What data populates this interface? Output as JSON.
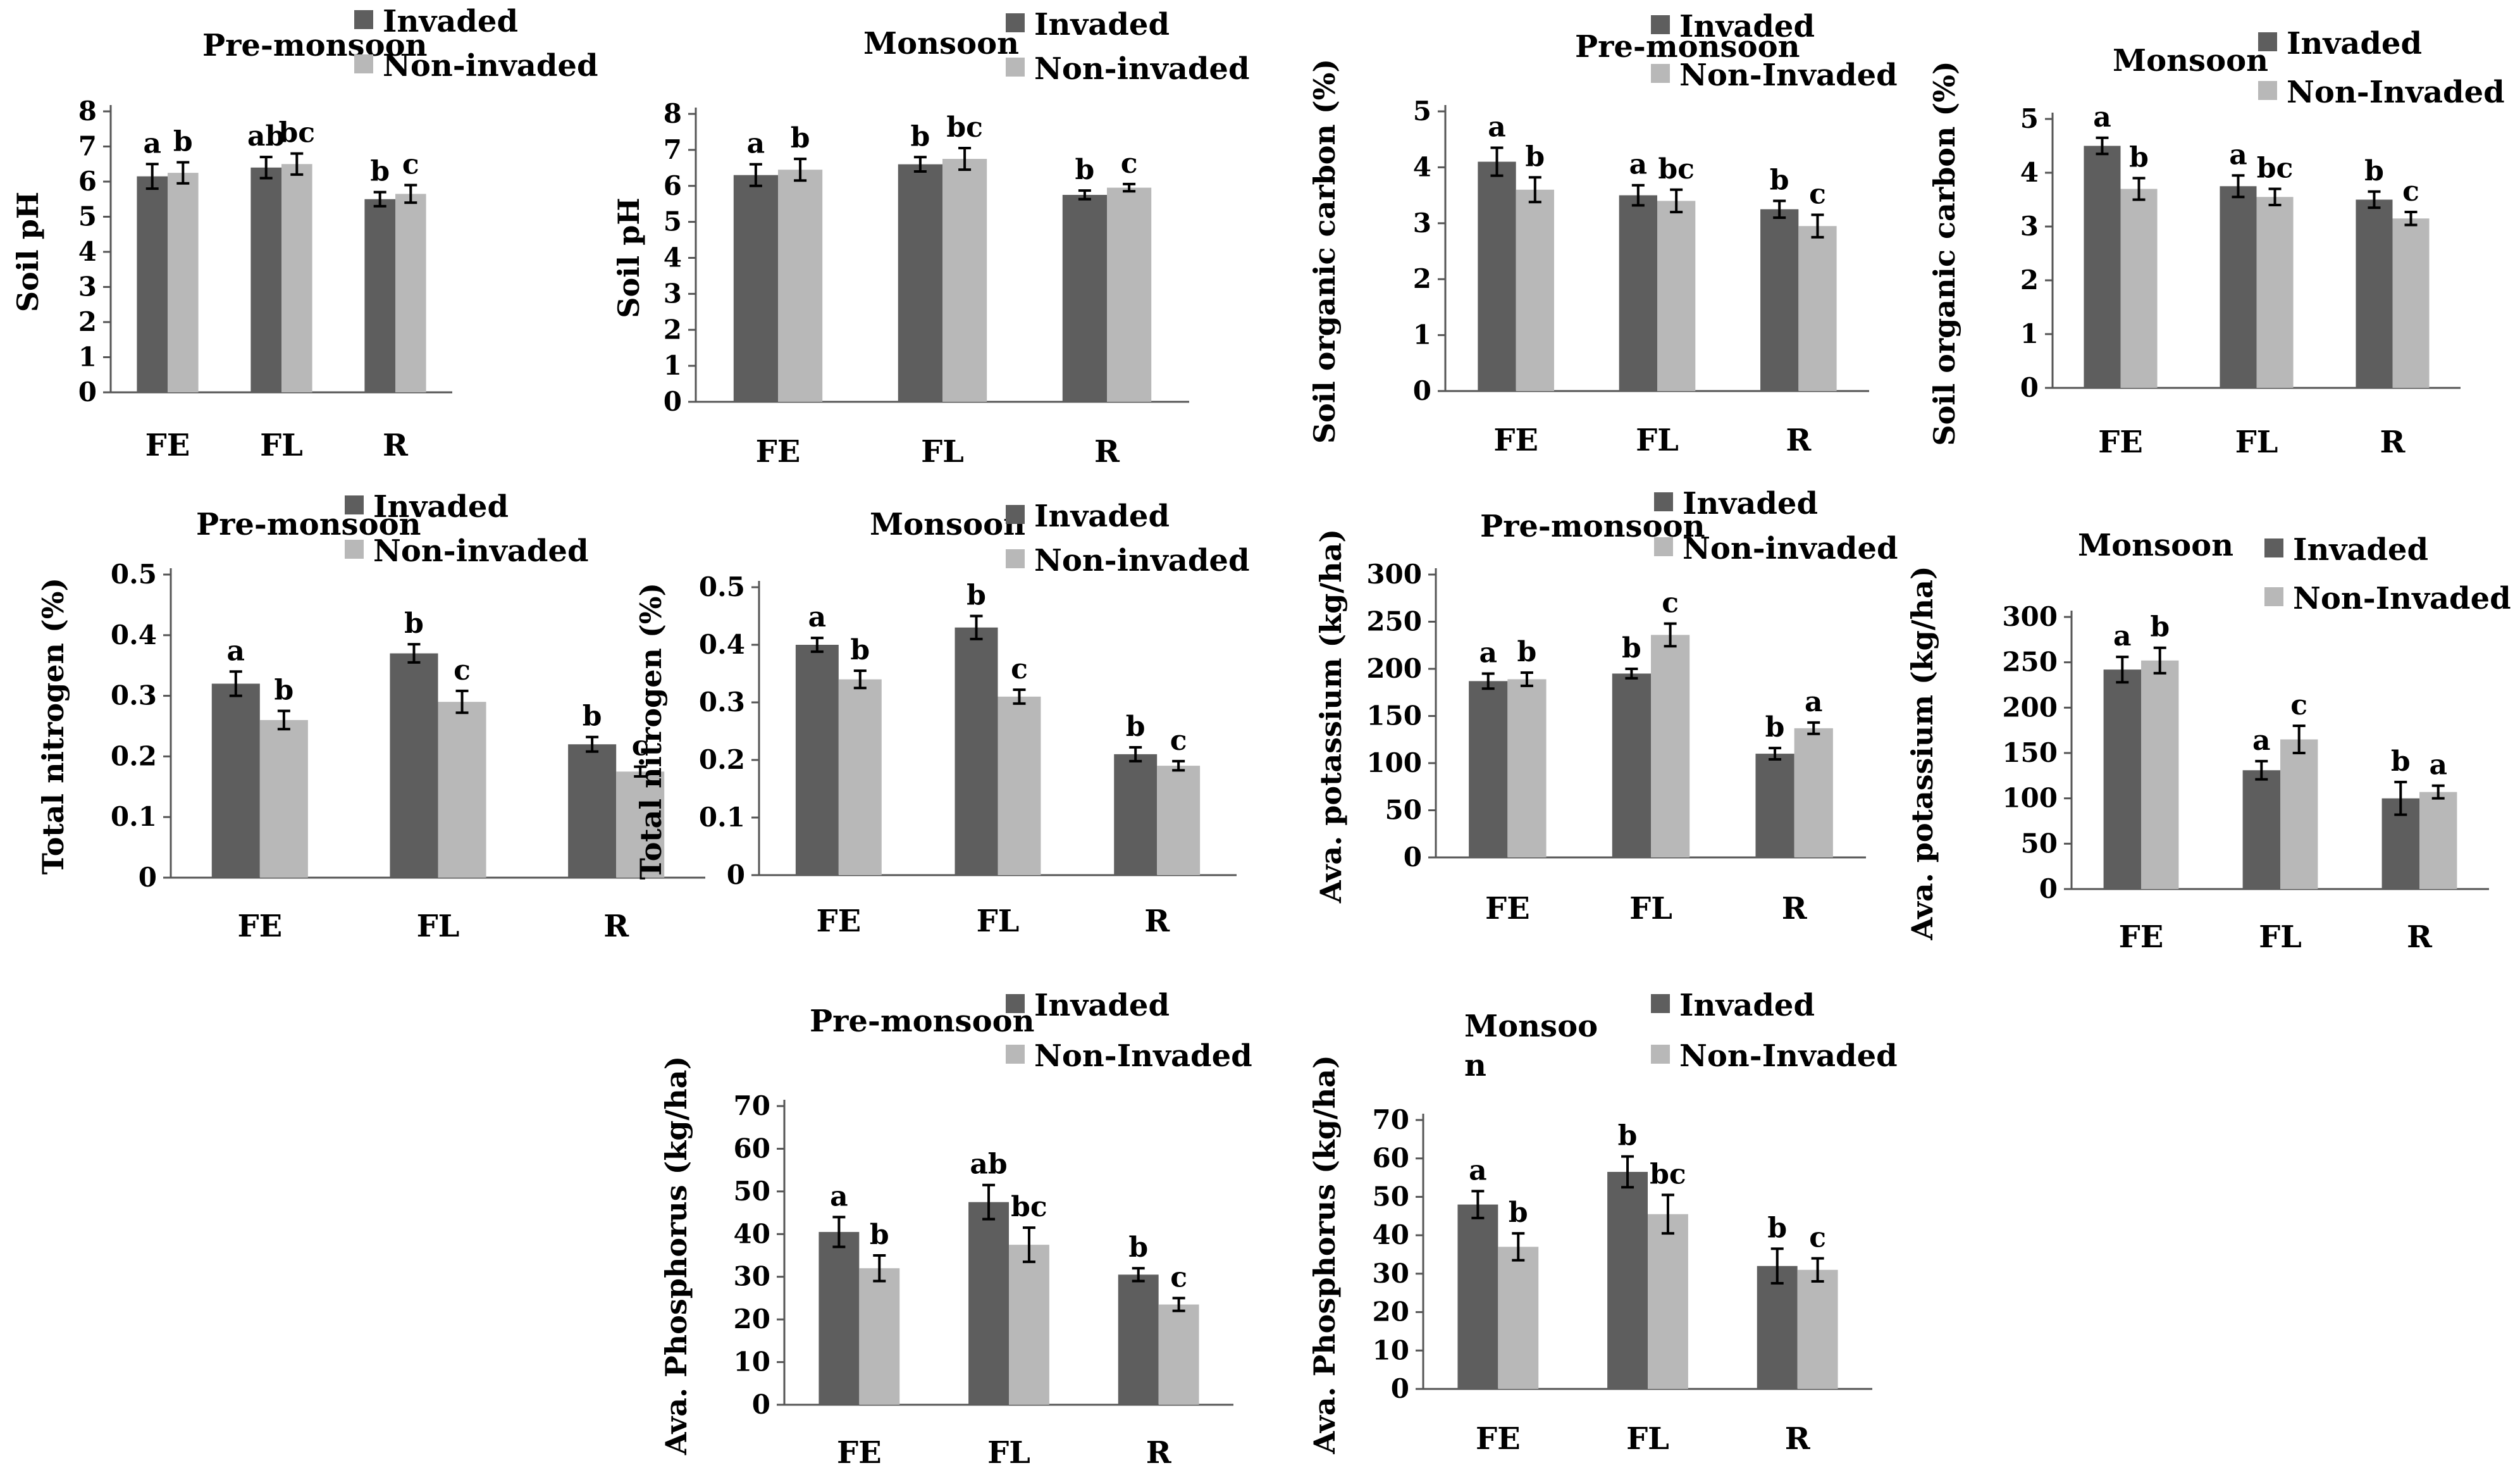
{
  "figure": {
    "colors": {
      "invaded": "#5e5e5e",
      "non_invaded": "#b8b8b8"
    }
  },
  "chart_data": [
    {
      "type": "bar",
      "title": "Pre-monsoon",
      "ylabel": "Soil pH",
      "categories": [
        "FE",
        "FL",
        "R"
      ],
      "ylim": [
        0,
        8
      ],
      "yticks": [
        0,
        1,
        2,
        3,
        4,
        5,
        6,
        7,
        8
      ],
      "series": [
        {
          "name": "Invaded",
          "values": [
            6.15,
            6.4,
            5.5
          ],
          "errors": [
            0.35,
            0.3,
            0.2
          ],
          "labels": [
            "a",
            "ab",
            "b"
          ]
        },
        {
          "name": "Non-invaded",
          "values": [
            6.25,
            6.5,
            5.65
          ],
          "errors": [
            0.3,
            0.3,
            0.25
          ],
          "labels": [
            "b",
            "bc",
            "c"
          ]
        }
      ]
    },
    {
      "type": "bar",
      "title": "Monsoon",
      "ylabel": "Soil pH",
      "categories": [
        "FE",
        "FL",
        "R"
      ],
      "ylim": [
        0,
        8
      ],
      "yticks": [
        0,
        1,
        2,
        3,
        4,
        5,
        6,
        7,
        8
      ],
      "series": [
        {
          "name": "Invaded",
          "values": [
            6.3,
            6.6,
            5.75
          ],
          "errors": [
            0.3,
            0.2,
            0.12
          ],
          "labels": [
            "a",
            "b",
            "b"
          ]
        },
        {
          "name": "Non-invaded",
          "values": [
            6.45,
            6.75,
            5.95
          ],
          "errors": [
            0.3,
            0.3,
            0.1
          ],
          "labels": [
            "b",
            "bc",
            "c"
          ]
        }
      ]
    },
    {
      "type": "bar",
      "title": "Pre-monsoon",
      "ylabel": "Soil organic carbon (%)",
      "categories": [
        "FE",
        "FL",
        "R"
      ],
      "ylim": [
        0,
        5
      ],
      "yticks": [
        0,
        1,
        2,
        3,
        4,
        5
      ],
      "series": [
        {
          "name": "Invaded",
          "values": [
            4.1,
            3.5,
            3.25
          ],
          "errors": [
            0.25,
            0.18,
            0.15
          ],
          "labels": [
            "a",
            "a",
            "b"
          ]
        },
        {
          "name": "Non-Invaded",
          "values": [
            3.6,
            3.4,
            2.95
          ],
          "errors": [
            0.22,
            0.2,
            0.2
          ],
          "labels": [
            "b",
            "bc",
            "c"
          ]
        }
      ]
    },
    {
      "type": "bar",
      "title": "Monsoon",
      "ylabel": "Soil organic carbon (%)",
      "categories": [
        "FE",
        "FL",
        "R"
      ],
      "ylim": [
        0,
        5
      ],
      "yticks": [
        0,
        1,
        2,
        3,
        4,
        5
      ],
      "series": [
        {
          "name": "Invaded",
          "values": [
            4.5,
            3.75,
            3.5
          ],
          "errors": [
            0.15,
            0.2,
            0.15
          ],
          "labels": [
            "a",
            "a",
            "b"
          ]
        },
        {
          "name": "Non-Invaded",
          "values": [
            3.7,
            3.55,
            3.15
          ],
          "errors": [
            0.2,
            0.15,
            0.12
          ],
          "labels": [
            "b",
            "bc",
            "c"
          ]
        }
      ]
    },
    {
      "type": "bar",
      "title": "Pre-monsoon",
      "ylabel": "Total nitrogen (%)",
      "categories": [
        "FE",
        "FL",
        "R"
      ],
      "ylim": [
        0,
        0.5
      ],
      "yticks": [
        0,
        0.1,
        0.2,
        0.3,
        0.4,
        0.5
      ],
      "series": [
        {
          "name": "Invaded",
          "values": [
            0.32,
            0.37,
            0.22
          ],
          "errors": [
            0.02,
            0.015,
            0.012
          ],
          "labels": [
            "a",
            "b",
            "b"
          ]
        },
        {
          "name": "Non-invaded",
          "values": [
            0.26,
            0.29,
            0.175
          ],
          "errors": [
            0.015,
            0.018,
            0.008
          ],
          "labels": [
            "b",
            "c",
            "c"
          ]
        }
      ]
    },
    {
      "type": "bar",
      "title": "Monsoon",
      "ylabel": "Total nitrogen (%)",
      "categories": [
        "FE",
        "FL",
        "R"
      ],
      "ylim": [
        0,
        0.5
      ],
      "yticks": [
        0,
        0.1,
        0.2,
        0.3,
        0.4,
        0.5
      ],
      "series": [
        {
          "name": "Invaded",
          "values": [
            0.4,
            0.43,
            0.21
          ],
          "errors": [
            0.012,
            0.02,
            0.012
          ],
          "labels": [
            "a",
            "b",
            "b"
          ]
        },
        {
          "name": "Non-invaded",
          "values": [
            0.34,
            0.31,
            0.19
          ],
          "errors": [
            0.015,
            0.012,
            0.008
          ],
          "labels": [
            "b",
            "c",
            "c"
          ]
        }
      ]
    },
    {
      "type": "bar",
      "title": "Pre-monsoon",
      "ylabel": "Ava. potassium (kg/ha)",
      "categories": [
        "FE",
        "FL",
        "R"
      ],
      "ylim": [
        0,
        300
      ],
      "yticks": [
        0,
        50,
        100,
        150,
        200,
        250,
        300
      ],
      "series": [
        {
          "name": "Invaded",
          "values": [
            187,
            195,
            110
          ],
          "errors": [
            8,
            5,
            6
          ],
          "labels": [
            "a",
            "b",
            "b"
          ]
        },
        {
          "name": "Non-invaded",
          "values": [
            189,
            236,
            137
          ],
          "errors": [
            7,
            12,
            6
          ],
          "labels": [
            "b",
            "c",
            "a"
          ]
        }
      ]
    },
    {
      "type": "bar",
      "title": "Monsoon",
      "ylabel": "Ava. potassium (kg/ha)",
      "categories": [
        "FE",
        "FL",
        "R"
      ],
      "ylim": [
        0,
        300
      ],
      "yticks": [
        0,
        50,
        100,
        150,
        200,
        250,
        300
      ],
      "series": [
        {
          "name": "Invaded",
          "values": [
            242,
            131,
            100
          ],
          "errors": [
            14,
            10,
            18
          ],
          "labels": [
            "a",
            "a",
            "b"
          ]
        },
        {
          "name": "Non-Invaded",
          "values": [
            252,
            165,
            107
          ],
          "errors": [
            14,
            15,
            7
          ],
          "labels": [
            "b",
            "c",
            "a"
          ]
        }
      ]
    },
    {
      "type": "bar",
      "title": "Pre-monsoon",
      "ylabel": "Ava. Phosphorus (kg/ha)",
      "categories": [
        "FE",
        "FL",
        "R"
      ],
      "ylim": [
        0,
        70
      ],
      "yticks": [
        0,
        10,
        20,
        30,
        40,
        50,
        60,
        70
      ],
      "series": [
        {
          "name": "Invaded",
          "values": [
            40.5,
            47.5,
            30.5
          ],
          "errors": [
            3.5,
            4,
            1.5
          ],
          "labels": [
            "a",
            "ab",
            "b"
          ]
        },
        {
          "name": "Non-Invaded",
          "values": [
            32,
            37.5,
            23.5
          ],
          "errors": [
            3,
            4,
            1.5
          ],
          "labels": [
            "b",
            "bc",
            "c"
          ]
        }
      ]
    },
    {
      "type": "bar",
      "title": "Monsoo n",
      "ylabel": "Ava. Phosphorus (kg/ha)",
      "categories": [
        "FE",
        "FL",
        "R"
      ],
      "ylim": [
        0,
        70
      ],
      "yticks": [
        0,
        10,
        20,
        30,
        40,
        50,
        60,
        70
      ],
      "series": [
        {
          "name": "Invaded",
          "values": [
            48,
            56.5,
            32
          ],
          "errors": [
            3.5,
            4,
            4.5
          ],
          "labels": [
            "a",
            "b",
            "b"
          ]
        },
        {
          "name": "Non-Invaded",
          "values": [
            37,
            45.5,
            31
          ],
          "errors": [
            3.5,
            5,
            3
          ],
          "labels": [
            "b",
            "bc",
            "c"
          ]
        }
      ]
    }
  ]
}
